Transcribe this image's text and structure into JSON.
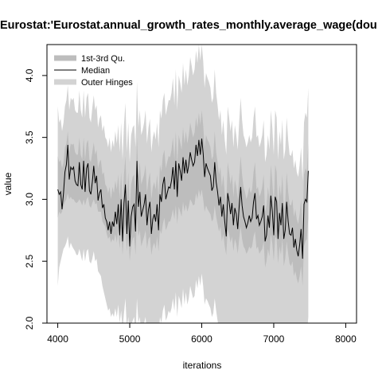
{
  "chart_data": {
    "type": "area",
    "title": "Eurostat:'Eurostat.annual_growth_rates_monthly.average_wage(dou",
    "xlabel": "iterations",
    "ylabel": "value",
    "xlim": [
      3850,
      8150
    ],
    "ylim": [
      2.0,
      4.25
    ],
    "x_ticks": [
      4000,
      5000,
      6000,
      7000,
      8000
    ],
    "y_ticks": [
      2.0,
      2.5,
      3.0,
      3.5,
      4.0
    ],
    "x_tick_labels": [
      "4000",
      "5000",
      "6000",
      "7000",
      "8000"
    ],
    "y_tick_labels": [
      "2.0",
      "2.5",
      "3.0",
      "3.5",
      "4.0"
    ],
    "legend_position": "top-left",
    "series": [
      {
        "name": "1st-3rd Qu.",
        "color": "#bdbdbd",
        "style": "band"
      },
      {
        "name": "Median",
        "color": "#000000",
        "style": "line"
      },
      {
        "name": "Outer Hinges",
        "color": "#d3d3d3",
        "style": "band"
      }
    ],
    "x_start": 4000,
    "x_step": 20,
    "median": [
      3.08,
      3.04,
      3.06,
      2.92,
      3.05,
      3.22,
      3.28,
      3.44,
      3.16,
      3.26,
      3.24,
      3.26,
      3.15,
      3.12,
      3.11,
      3.3,
      3.12,
      3.08,
      3.31,
      3.06,
      3.25,
      3.29,
      3.07,
      3.04,
      3.14,
      3.27,
      3.13,
      3.19,
      2.99,
      3.05,
      3.08,
      2.93,
      2.96,
      2.85,
      2.82,
      2.75,
      2.82,
      2.72,
      2.82,
      2.78,
      2.9,
      2.8,
      2.96,
      2.71,
      3.0,
      2.66,
      2.97,
      3.12,
      2.72,
      2.99,
      2.62,
      2.86,
      2.94,
      2.96,
      2.74,
      3.31,
      2.94,
      3.06,
      2.86,
      2.91,
      2.96,
      3.04,
      2.79,
      2.92,
      2.98,
      2.72,
      2.84,
      2.88,
      2.82,
      2.96,
      2.75,
      3.04,
      2.98,
      3.12,
      3.18,
      3.0,
      3.05,
      3.1,
      3.09,
      3.15,
      3.26,
      3.08,
      3.31,
      3.02,
      3.29,
      3.23,
      3.15,
      3.34,
      3.21,
      3.32,
      3.21,
      3.28,
      3.38,
      3.32,
      3.27,
      3.3,
      3.44,
      3.35,
      3.48,
      3.36,
      3.49,
      3.37,
      3.18,
      3.29,
      3.25,
      3.22,
      3.19,
      3.07,
      3.1,
      3.3,
      3.14,
      3.06,
      2.95,
      3.02,
      2.86,
      2.96,
      2.82,
      2.7,
      3.05,
      2.98,
      2.88,
      2.97,
      2.79,
      2.93,
      2.88,
      2.76,
      2.94,
      3.1,
      2.95,
      2.86,
      2.82,
      2.77,
      2.81,
      2.87,
      2.82,
      2.85,
      2.98,
      3.05,
      2.84,
      2.87,
      2.79,
      2.82,
      2.86,
      2.95,
      2.66,
      2.71,
      2.87,
      2.77,
      3.03,
      2.9,
      2.71,
      3.02,
      2.98,
      2.68,
      2.89,
      2.79,
      2.97,
      2.68,
      2.75,
      2.98,
      2.82,
      2.72,
      2.71,
      2.77,
      2.61,
      2.68,
      2.59,
      2.54,
      2.63,
      2.76,
      2.52,
      2.96,
      3.0,
      2.98,
      3.23
    ],
    "q1": [
      2.85,
      2.9,
      2.88,
      2.9,
      2.95,
      2.98,
      3.0,
      3.05,
      3.0,
      3.02,
      3.0,
      3.0,
      2.98,
      2.97,
      2.98,
      3.0,
      2.98,
      2.95,
      3.0,
      2.95,
      3.0,
      3.02,
      2.95,
      2.93,
      2.97,
      3.0,
      2.96,
      2.97,
      2.9,
      2.9,
      2.9,
      2.82,
      2.8,
      2.78,
      2.72,
      2.68,
      2.7,
      2.65,
      2.68,
      2.66,
      2.72,
      2.65,
      2.75,
      2.6,
      2.75,
      2.55,
      2.72,
      2.8,
      2.58,
      2.72,
      2.5,
      2.62,
      2.68,
      2.7,
      2.55,
      2.85,
      2.7,
      2.75,
      2.62,
      2.66,
      2.7,
      2.75,
      2.6,
      2.68,
      2.7,
      2.55,
      2.62,
      2.65,
      2.6,
      2.7,
      2.58,
      2.75,
      2.72,
      2.8,
      2.85,
      2.75,
      2.78,
      2.82,
      2.82,
      2.86,
      2.92,
      2.84,
      2.95,
      2.8,
      2.94,
      2.9,
      2.86,
      2.98,
      2.9,
      2.96,
      2.9,
      2.94,
      3.0,
      2.98,
      2.95,
      2.96,
      3.05,
      3.0,
      3.08,
      3.02,
      3.08,
      3.0,
      2.9,
      2.95,
      2.92,
      2.9,
      2.88,
      2.82,
      2.84,
      2.95,
      2.86,
      2.8,
      2.74,
      2.78,
      2.66,
      2.72,
      2.62,
      2.55,
      2.76,
      2.72,
      2.65,
      2.7,
      2.58,
      2.68,
      2.64,
      2.56,
      2.68,
      2.78,
      2.68,
      2.62,
      2.6,
      2.56,
      2.58,
      2.62,
      2.6,
      2.62,
      2.7,
      2.74,
      2.6,
      2.62,
      2.56,
      2.58,
      2.6,
      2.66,
      2.45,
      2.5,
      2.6,
      2.54,
      2.72,
      2.64,
      2.5,
      2.7,
      2.68,
      2.48,
      2.62,
      2.55,
      2.68,
      2.46,
      2.52,
      2.66,
      2.56,
      2.48,
      2.46,
      2.5,
      2.38,
      2.42,
      2.36,
      2.32,
      2.38,
      2.46,
      2.3,
      2.62,
      2.66,
      2.68,
      2.85
    ],
    "q3": [
      3.35,
      3.3,
      3.32,
      3.25,
      3.3,
      3.42,
      3.45,
      3.55,
      3.38,
      3.45,
      3.44,
      3.45,
      3.38,
      3.36,
      3.36,
      3.5,
      3.36,
      3.32,
      3.5,
      3.32,
      3.45,
      3.48,
      3.32,
      3.3,
      3.38,
      3.46,
      3.36,
      3.4,
      3.25,
      3.3,
      3.32,
      3.2,
      3.22,
      3.12,
      3.1,
      3.05,
      3.1,
      3.0,
      3.1,
      3.05,
      3.15,
      3.08,
      3.2,
      3.0,
      3.22,
      2.95,
      3.2,
      3.35,
      3.0,
      3.22,
      2.92,
      3.12,
      3.18,
      3.2,
      3.02,
      3.5,
      3.18,
      3.3,
      3.12,
      3.16,
      3.2,
      3.28,
      3.05,
      3.16,
      3.22,
      3.0,
      3.1,
      3.14,
      3.08,
      3.2,
      3.02,
      3.28,
      3.22,
      3.35,
      3.4,
      3.25,
      3.3,
      3.35,
      3.34,
      3.4,
      3.5,
      3.32,
      3.55,
      3.28,
      3.52,
      3.46,
      3.4,
      3.58,
      3.45,
      3.55,
      3.45,
      3.52,
      3.62,
      3.56,
      3.5,
      3.54,
      3.66,
      3.58,
      3.7,
      3.6,
      3.72,
      3.6,
      3.42,
      3.52,
      3.48,
      3.46,
      3.42,
      3.32,
      3.35,
      3.55,
      3.38,
      3.3,
      3.2,
      3.26,
      3.1,
      3.2,
      3.05,
      2.95,
      3.3,
      3.22,
      3.12,
      3.2,
      3.02,
      3.16,
      3.1,
      3.0,
      3.18,
      3.35,
      3.2,
      3.1,
      3.06,
      3.0,
      3.04,
      3.1,
      3.05,
      3.08,
      3.22,
      3.3,
      3.08,
      3.1,
      3.02,
      3.05,
      3.1,
      3.2,
      2.9,
      2.95,
      3.1,
      3.0,
      3.28,
      3.14,
      2.95,
      3.28,
      3.22,
      2.92,
      3.12,
      3.02,
      3.2,
      2.92,
      2.98,
      3.22,
      3.06,
      2.96,
      2.95,
      3.0,
      2.86,
      2.92,
      2.84,
      2.8,
      2.88,
      3.0,
      2.78,
      3.2,
      3.25,
      3.22,
      3.45
    ],
    "hinge_low": [
      2.3,
      2.45,
      2.5,
      2.55,
      2.6,
      2.62,
      2.65,
      2.7,
      2.6,
      2.65,
      2.62,
      2.6,
      2.58,
      2.55,
      2.55,
      2.6,
      2.55,
      2.5,
      2.6,
      2.5,
      2.58,
      2.6,
      2.5,
      2.48,
      2.52,
      2.58,
      2.5,
      2.52,
      2.42,
      2.4,
      2.38,
      2.3,
      2.25,
      2.2,
      2.15,
      2.1,
      2.12,
      2.05,
      2.08,
      2.05,
      2.12,
      2.05,
      2.15,
      2.0,
      2.1,
      1.95,
      2.08,
      2.2,
      1.95,
      2.05,
      1.9,
      1.98,
      2.02,
      2.05,
      1.9,
      2.2,
      2.0,
      2.05,
      1.92,
      1.95,
      2.0,
      2.05,
      1.9,
      1.95,
      2.0,
      1.85,
      1.92,
      1.95,
      1.9,
      2.0,
      1.88,
      2.05,
      2.0,
      2.1,
      2.15,
      2.02,
      2.05,
      2.1,
      2.08,
      2.12,
      2.2,
      2.1,
      2.25,
      2.05,
      2.22,
      2.18,
      2.12,
      2.28,
      2.15,
      2.25,
      2.15,
      2.2,
      2.3,
      2.25,
      2.2,
      2.22,
      2.35,
      2.28,
      2.38,
      2.3,
      2.4,
      2.3,
      2.15,
      2.2,
      2.18,
      2.15,
      2.12,
      2.05,
      2.08,
      2.2,
      2.1,
      2.02,
      1.95,
      2.0,
      1.88,
      1.95,
      1.85,
      1.8,
      2.0,
      1.95,
      1.88,
      1.92,
      1.82,
      1.9,
      1.86,
      1.8,
      1.9,
      2.0,
      1.92,
      1.86,
      1.84,
      1.8,
      1.82,
      1.86,
      1.82,
      1.84,
      1.92,
      1.98,
      1.84,
      1.86,
      1.8,
      1.82,
      1.84,
      1.9,
      1.75,
      1.78,
      1.86,
      1.8,
      1.95,
      1.88,
      1.76,
      1.95,
      1.92,
      1.74,
      1.86,
      1.8,
      1.9,
      1.74,
      1.78,
      1.9,
      1.82,
      1.76,
      1.75,
      1.78,
      1.7,
      1.72,
      1.68,
      1.65,
      1.7,
      1.76,
      1.64,
      1.88,
      1.92,
      1.9,
      2.05
    ],
    "hinge_high": [
      3.75,
      3.62,
      3.65,
      3.55,
      3.62,
      3.75,
      3.8,
      3.92,
      3.72,
      3.82,
      3.8,
      3.82,
      3.72,
      3.7,
      3.7,
      3.88,
      3.72,
      3.66,
      3.88,
      3.66,
      3.82,
      3.86,
      3.66,
      3.62,
      3.74,
      3.84,
      3.72,
      3.76,
      3.58,
      3.65,
      3.68,
      3.55,
      3.6,
      3.5,
      3.48,
      3.42,
      3.5,
      3.38,
      3.48,
      3.42,
      3.55,
      3.45,
      3.6,
      3.38,
      3.62,
      3.32,
      3.6,
      3.78,
      3.38,
      3.62,
      3.3,
      3.52,
      3.58,
      3.6,
      3.42,
      3.95,
      3.58,
      3.72,
      3.52,
      3.56,
      3.62,
      3.72,
      3.45,
      3.58,
      3.65,
      3.38,
      3.5,
      3.55,
      3.48,
      3.62,
      3.42,
      3.72,
      3.65,
      3.8,
      3.86,
      3.68,
      3.74,
      3.8,
      3.8,
      3.86,
      3.98,
      3.76,
      4.05,
      3.72,
      4.0,
      3.94,
      3.86,
      4.1,
      3.92,
      4.05,
      3.92,
      4.0,
      4.15,
      4.08,
      4.0,
      4.05,
      4.2,
      4.1,
      4.25,
      4.12,
      4.25,
      4.12,
      3.9,
      4.02,
      3.98,
      3.95,
      3.9,
      3.78,
      3.82,
      4.05,
      3.86,
      3.76,
      3.64,
      3.72,
      3.52,
      3.64,
      3.48,
      3.36,
      3.75,
      3.66,
      3.55,
      3.64,
      3.42,
      3.6,
      3.52,
      3.4,
      3.62,
      3.82,
      3.64,
      3.52,
      3.48,
      3.42,
      3.46,
      3.52,
      3.46,
      3.5,
      3.66,
      3.75,
      3.5,
      3.52,
      3.42,
      3.46,
      3.52,
      3.64,
      3.3,
      3.36,
      3.52,
      3.4,
      3.72,
      3.58,
      3.36,
      3.72,
      3.66,
      3.32,
      3.55,
      3.44,
      3.64,
      3.32,
      3.4,
      3.66,
      3.48,
      3.36,
      3.35,
      3.4,
      3.25,
      3.32,
      3.22,
      3.18,
      3.28,
      3.42,
      3.15,
      3.62,
      3.7,
      3.66,
      3.9
    ]
  }
}
